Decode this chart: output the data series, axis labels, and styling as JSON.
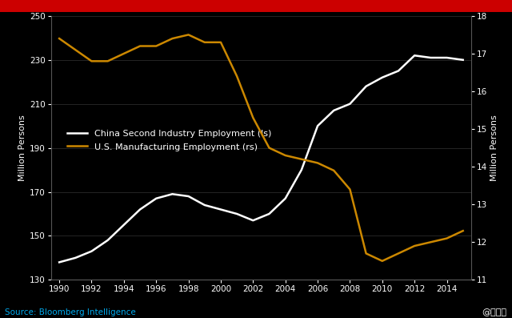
{
  "background_color": "#000000",
  "grid_color": "#2a2a2a",
  "title_bar_color": "#cc0000",
  "china_line_color": "#ffffff",
  "us_line_color": "#cc8800",
  "china_label": "China Second Industry Employment (ls)",
  "us_label": "U.S. Manufacturing Employment (rs)",
  "left_ylabel": "Million Persons",
  "right_ylabel": "Million Persons",
  "source_text": "Source: Bloomberg Intelligence",
  "watermark_text": "@格隆汇",
  "china_years": [
    1990,
    1991,
    1992,
    1993,
    1994,
    1995,
    1996,
    1997,
    1998,
    1999,
    2000,
    2001,
    2002,
    2003,
    2004,
    2005,
    2006,
    2007,
    2008,
    2009,
    2010,
    2011,
    2012,
    2013,
    2014,
    2015
  ],
  "china_values": [
    138,
    140,
    143,
    148,
    155,
    162,
    167,
    169,
    168,
    164,
    162,
    160,
    157,
    160,
    167,
    180,
    200,
    207,
    210,
    218,
    222,
    225,
    232,
    231,
    231,
    230
  ],
  "us_years": [
    1990,
    1991,
    1992,
    1993,
    1994,
    1995,
    1996,
    1997,
    1998,
    1999,
    2000,
    2001,
    2002,
    2003,
    2004,
    2005,
    2006,
    2007,
    2008,
    2009,
    2010,
    2011,
    2012,
    2013,
    2014,
    2015
  ],
  "us_values": [
    17.4,
    17.1,
    16.8,
    16.8,
    17.0,
    17.2,
    17.2,
    17.4,
    17.5,
    17.3,
    17.3,
    16.4,
    15.3,
    14.5,
    14.3,
    14.2,
    14.1,
    13.9,
    13.4,
    11.7,
    11.5,
    11.7,
    11.9,
    12.0,
    12.1,
    12.3
  ],
  "left_ylim": [
    130,
    250
  ],
  "right_ylim": [
    11,
    18
  ],
  "left_yticks": [
    130,
    150,
    170,
    190,
    210,
    230,
    250
  ],
  "right_yticks": [
    11,
    12,
    13,
    14,
    15,
    16,
    17,
    18
  ],
  "xticks": [
    1990,
    1992,
    1994,
    1996,
    1998,
    2000,
    2002,
    2004,
    2006,
    2008,
    2010,
    2012,
    2014
  ],
  "xlim": [
    1989.5,
    2015.5
  ],
  "line_width": 1.8
}
